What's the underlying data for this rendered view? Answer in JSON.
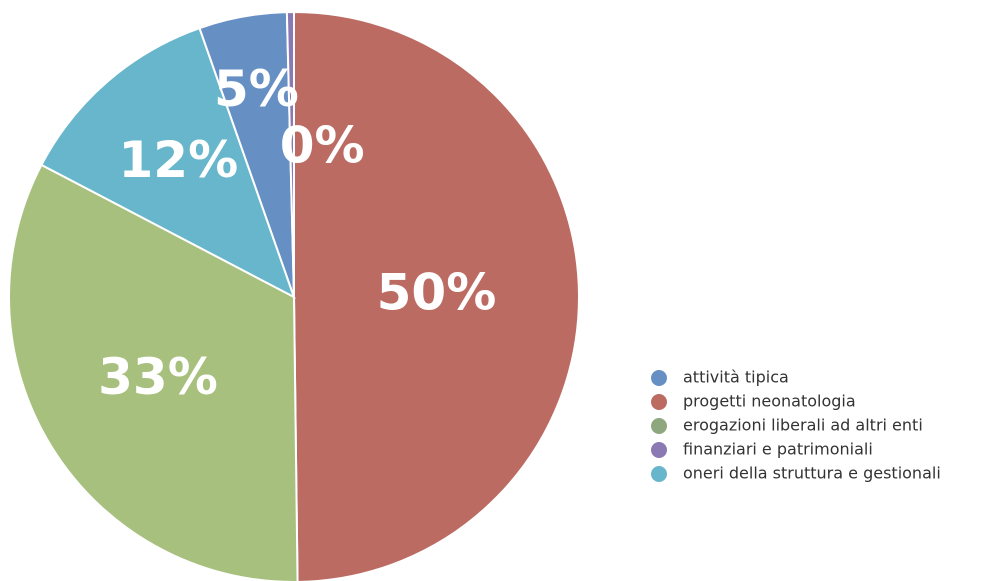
{
  "chart_data": {
    "type": "pie",
    "values": [
      50,
      33,
      12,
      5,
      0.4
    ],
    "value_labels": [
      "50%",
      "33%",
      "12%",
      "5%",
      "0%"
    ],
    "colors": [
      "#bc6b63",
      "#a8c07e",
      "#68b6cb",
      "#6690c4",
      "#8b79b4"
    ],
    "legend": [
      {
        "label": "attività tipica",
        "color": "#6690c4"
      },
      {
        "label": "progetti neonatologia",
        "color": "#bc6b63"
      },
      {
        "label": "erogazioni liberali ad altri enti",
        "color": "#8fa77f"
      },
      {
        "label": "finanziari e patrimoniali",
        "color": "#8b79b4"
      },
      {
        "label": "oneri della struttura e gestionali",
        "color": "#68b6cb"
      }
    ]
  }
}
